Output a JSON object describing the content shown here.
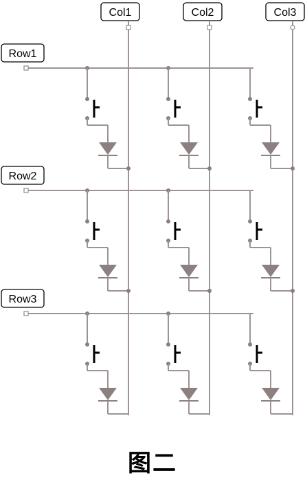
{
  "rows": [
    "Row1",
    "Row2",
    "Row3"
  ],
  "columns": [
    "Col1",
    "Col2",
    "Col3"
  ],
  "caption": "图二",
  "colors": {
    "wire": "#9c9494",
    "node": "#8a7f7f",
    "diode": "#8c8080",
    "switch": "#000000",
    "label_border": "#000000",
    "label_text": "#000000"
  }
}
